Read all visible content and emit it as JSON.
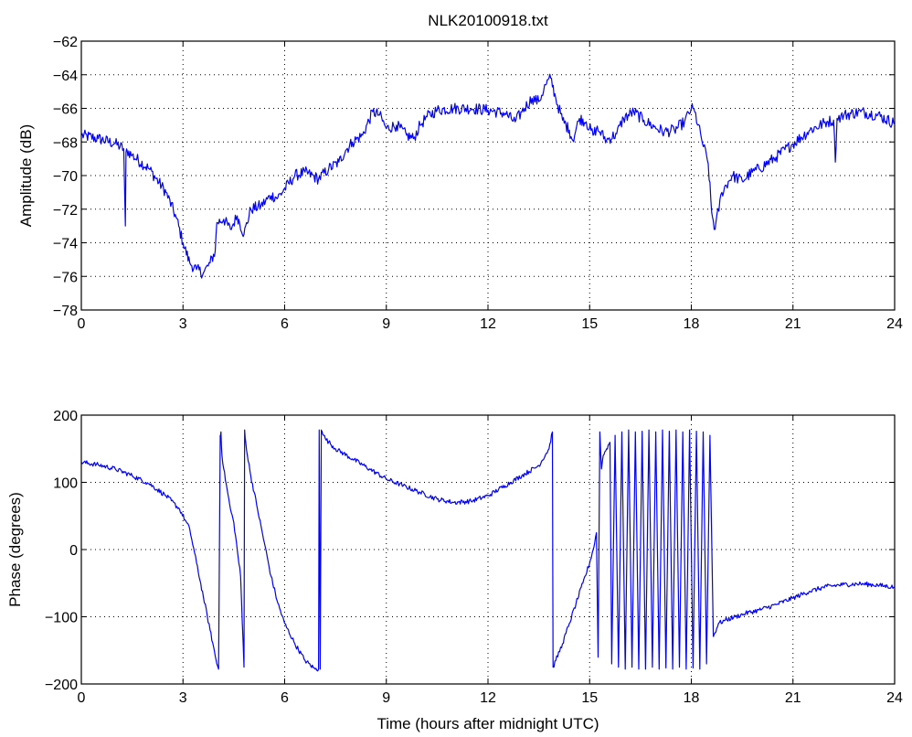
{
  "chart_data": [
    {
      "type": "line",
      "title": "NLK20100918.txt",
      "xlabel": "",
      "ylabel": "Amplitude (dB)",
      "xlim": [
        0,
        24
      ],
      "ylim": [
        -78,
        -62
      ],
      "xticks": [
        0,
        3,
        6,
        9,
        12,
        15,
        18,
        21,
        24
      ],
      "yticks": [
        -78,
        -76,
        -74,
        -72,
        -70,
        -68,
        -66,
        -64,
        -62
      ],
      "xtick_labels": [
        "0",
        "3",
        "6",
        "9",
        "12",
        "15",
        "18",
        "21",
        "24"
      ],
      "ytick_labels": [
        "−78",
        "−76",
        "−74",
        "−72",
        "−70",
        "−68",
        "−66",
        "−64",
        "−62"
      ],
      "grid": true,
      "color": "#0000ff",
      "series": [
        {
          "x": [
            0,
            0.5,
            1.0,
            1.25,
            1.3,
            1.32,
            1.35,
            1.5,
            2.0,
            2.5,
            2.8,
            3.0,
            3.2,
            3.4,
            3.6,
            3.8,
            3.95,
            4.0,
            4.2,
            4.4,
            4.6,
            4.8,
            5.0,
            5.3,
            5.6,
            5.8,
            6.0,
            6.3,
            6.6,
            7.0,
            7.3,
            7.6,
            7.8,
            8.0,
            8.3,
            8.6,
            8.8,
            9.0,
            9.3,
            9.6,
            9.8,
            10.0,
            10.2,
            10.5,
            11.0,
            11.5,
            12.0,
            12.5,
            12.8,
            13.0,
            13.3,
            13.5,
            13.7,
            13.85,
            14.0,
            14.2,
            14.4,
            14.5,
            14.7,
            14.9,
            15.1,
            15.2,
            15.3,
            15.5,
            15.8,
            16.0,
            16.3,
            16.6,
            16.9,
            17.2,
            17.5,
            17.8,
            18.0,
            18.1,
            18.3,
            18.5,
            18.6,
            18.7,
            18.9,
            19.2,
            19.5,
            19.8,
            20.0,
            20.5,
            21.0,
            21.5,
            22.0,
            22.2,
            22.25,
            22.3,
            22.5,
            23.0,
            23.5,
            24.0
          ],
          "y": [
            -67.6,
            -67.8,
            -68.1,
            -68.4,
            -73.0,
            -68.6,
            -68.5,
            -68.8,
            -69.6,
            -71.0,
            -72.5,
            -74.0,
            -75.2,
            -75.6,
            -75.8,
            -75.2,
            -74.5,
            -72.8,
            -72.6,
            -73.2,
            -72.4,
            -73.5,
            -72.0,
            -71.8,
            -71.2,
            -71.3,
            -70.8,
            -70.0,
            -69.8,
            -70.2,
            -69.6,
            -69.2,
            -68.5,
            -68.0,
            -67.6,
            -66.2,
            -66.4,
            -67.2,
            -67.0,
            -67.6,
            -67.8,
            -67.0,
            -66.5,
            -66.1,
            -66.0,
            -66.0,
            -66.1,
            -66.3,
            -66.8,
            -66.2,
            -65.4,
            -65.6,
            -64.6,
            -64.2,
            -65.4,
            -66.7,
            -67.3,
            -67.9,
            -66.6,
            -66.8,
            -67.6,
            -67.2,
            -67.4,
            -67.9,
            -67.5,
            -66.6,
            -66.2,
            -66.7,
            -67.1,
            -67.4,
            -67.3,
            -66.8,
            -66.0,
            -66.2,
            -67.8,
            -69.3,
            -72.2,
            -73.2,
            -71.0,
            -70.0,
            -70.3,
            -69.8,
            -69.6,
            -68.9,
            -68.1,
            -67.3,
            -66.8,
            -66.7,
            -69.2,
            -66.6,
            -66.4,
            -66.2,
            -66.4,
            -66.9
          ]
        }
      ]
    },
    {
      "type": "line",
      "title": "",
      "xlabel": "Time (hours after midnight UTC)",
      "ylabel": "Phase (degrees)",
      "xlim": [
        0,
        24
      ],
      "ylim": [
        -200,
        200
      ],
      "xticks": [
        0,
        3,
        6,
        9,
        12,
        15,
        18,
        21,
        24
      ],
      "yticks": [
        -200,
        -100,
        0,
        100,
        200
      ],
      "xtick_labels": [
        "0",
        "3",
        "6",
        "9",
        "12",
        "15",
        "18",
        "21",
        "24"
      ],
      "ytick_labels": [
        "−200",
        "−100",
        "0",
        "100",
        "200"
      ],
      "grid": true,
      "color": "#0000ff",
      "series": [
        {
          "x": [
            0,
            0.5,
            1.0,
            1.5,
            2.0,
            2.5,
            2.9,
            3.2,
            3.4,
            3.6,
            3.8,
            4.0,
            4.05,
            4.1,
            4.12,
            4.15,
            4.2,
            4.3,
            4.4,
            4.5,
            4.6,
            4.7,
            4.8,
            4.82,
            4.85,
            4.9,
            5.0,
            5.2,
            5.4,
            5.6,
            5.8,
            6.0,
            6.3,
            6.6,
            6.9,
            7.0,
            7.02,
            7.05,
            7.08,
            7.1,
            7.15,
            7.2,
            7.3,
            7.5,
            8.0,
            8.5,
            9.0,
            9.5,
            10.0,
            10.5,
            11.0,
            11.5,
            12.0,
            12.5,
            13.0,
            13.5,
            13.8,
            13.9,
            13.92,
            14.0,
            14.2,
            14.4,
            14.6,
            14.8,
            15.0,
            15.15,
            15.2,
            15.25,
            15.3,
            15.35,
            15.4,
            15.5,
            15.6
          ],
          "y": [
            130,
            126,
            120,
            110,
            98,
            80,
            60,
            30,
            -20,
            -70,
            -120,
            -170,
            -178,
            170,
            175,
            140,
            120,
            90,
            60,
            40,
            0,
            -40,
            -175,
            178,
            160,
            140,
            110,
            60,
            10,
            -40,
            -80,
            -110,
            -140,
            -165,
            -178,
            -178,
            178,
            -178,
            178,
            176,
            170,
            165,
            160,
            150,
            135,
            120,
            105,
            95,
            85,
            75,
            70,
            72,
            80,
            95,
            110,
            125,
            150,
            175,
            -175,
            -165,
            -140,
            -110,
            -80,
            -50,
            -20,
            10,
            25,
            -160,
            175,
            120,
            140,
            150,
            160
          ]
        },
        {
          "x": [
            15.6,
            15.65,
            15.75,
            15.85,
            15.95,
            16.05,
            16.15,
            16.25,
            16.35,
            16.45,
            16.55,
            16.65,
            16.75,
            16.85,
            16.95,
            17.05,
            17.15,
            17.25,
            17.35,
            17.45,
            17.55,
            17.65,
            17.75,
            17.85,
            17.95,
            18.05,
            18.15,
            18.25,
            18.35,
            18.45,
            18.55,
            18.65
          ],
          "y": [
            160,
            -170,
            170,
            -175,
            175,
            -178,
            178,
            -175,
            175,
            -178,
            176,
            -178,
            178,
            -175,
            175,
            -178,
            178,
            -176,
            176,
            -178,
            178,
            -175,
            175,
            -178,
            178,
            -176,
            176,
            -178,
            175,
            -170,
            170,
            -130
          ]
        },
        {
          "x": [
            18.65,
            18.8,
            19.0,
            19.3,
            19.6,
            20.0,
            20.5,
            21.0,
            21.5,
            22.0,
            22.5,
            23.0,
            23.5,
            24.0
          ],
          "y": [
            -130,
            -110,
            -105,
            -100,
            -95,
            -90,
            -82,
            -72,
            -62,
            -55,
            -52,
            -51,
            -53,
            -56
          ]
        }
      ]
    }
  ]
}
